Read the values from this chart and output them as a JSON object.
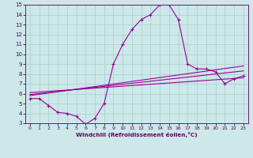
{
  "xlabel": "Windchill (Refroidissement éolien,°C)",
  "bg_color": "#cce8e8",
  "line_color": "#990099",
  "grid_color": "#aacccc",
  "axis_label_color": "#660066",
  "tick_color": "#550055",
  "xlim": [
    -0.5,
    23.5
  ],
  "ylim": [
    3,
    15
  ],
  "xticks": [
    0,
    1,
    2,
    3,
    4,
    5,
    6,
    7,
    8,
    9,
    10,
    11,
    12,
    13,
    14,
    15,
    16,
    17,
    18,
    19,
    20,
    21,
    22,
    23
  ],
  "yticks": [
    3,
    4,
    5,
    6,
    7,
    8,
    9,
    10,
    11,
    12,
    13,
    14,
    15
  ],
  "main_x": [
    0,
    1,
    2,
    3,
    4,
    5,
    6,
    7,
    8,
    9,
    10,
    11,
    12,
    13,
    14,
    15,
    16,
    17,
    18,
    19,
    20,
    21,
    22,
    23
  ],
  "main_y": [
    5.5,
    5.5,
    4.8,
    4.1,
    4.0,
    3.7,
    2.9,
    3.5,
    5.0,
    9.0,
    11.0,
    12.5,
    13.5,
    14.0,
    15.0,
    15.0,
    13.5,
    9.0,
    8.5,
    8.5,
    8.2,
    7.0,
    7.5,
    7.8
  ],
  "trend1_x": [
    0,
    23
  ],
  "trend1_y": [
    5.8,
    8.8
  ],
  "trend2_x": [
    0,
    23
  ],
  "trend2_y": [
    5.9,
    8.3
  ],
  "trend3_x": [
    0,
    23
  ],
  "trend3_y": [
    6.1,
    7.6
  ]
}
